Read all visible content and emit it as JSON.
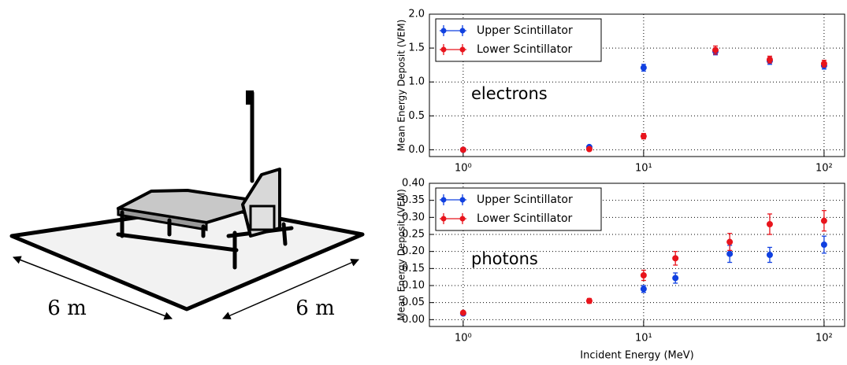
{
  "diagram": {
    "labels": [
      "6 m",
      "6 m"
    ]
  },
  "chart_data": [
    {
      "type": "scatter",
      "ylabel": "Mean Energy Deposit (VEM)",
      "annotation": "electrons",
      "xscale": "log",
      "grid": true,
      "legend": "upper left",
      "xlim": [
        0.65,
        130
      ],
      "ylim": [
        -0.1,
        2.0
      ],
      "xticks": [
        {
          "value": 1,
          "label": "10⁰"
        },
        {
          "value": 10,
          "label": "10¹"
        },
        {
          "value": 100,
          "label": "10²"
        }
      ],
      "yticks": [
        {
          "value": 0,
          "label": "0.0"
        },
        0.5,
        {
          "value": 1,
          "label": "1.0"
        },
        1.5,
        {
          "value": 2,
          "label": "2.0"
        }
      ],
      "series": [
        {
          "name": "Upper Scintillator",
          "color": "#1040e0",
          "x": [
            1,
            5,
            10,
            25,
            50,
            100
          ],
          "values": [
            0.0,
            0.04,
            1.21,
            1.45,
            1.31,
            1.24
          ],
          "errors": [
            0.01,
            0.02,
            0.05,
            0.05,
            0.05,
            0.05
          ]
        },
        {
          "name": "Lower Scintillator",
          "color": "#e8141c",
          "x": [
            1,
            5,
            10,
            25,
            50,
            100
          ],
          "values": [
            0.0,
            0.01,
            0.2,
            1.47,
            1.33,
            1.27
          ],
          "errors": [
            0.01,
            0.01,
            0.04,
            0.06,
            0.05,
            0.05
          ]
        }
      ]
    },
    {
      "type": "scatter",
      "ylabel": "Mean Energy Deposit (VEM)",
      "xlabel": "Incident Energy (MeV)",
      "annotation": "photons",
      "xscale": "log",
      "grid": true,
      "legend": "upper left",
      "xlim": [
        0.65,
        130
      ],
      "ylim": [
        -0.02,
        0.4
      ],
      "xticks": [
        {
          "value": 1,
          "label": "10⁰"
        },
        {
          "value": 10,
          "label": "10¹"
        },
        {
          "value": 100,
          "label": "10²"
        }
      ],
      "yticks": [
        {
          "value": 0,
          "label": "0.00"
        },
        0.05,
        {
          "value": 0.1,
          "label": "0.10"
        },
        0.15,
        {
          "value": 0.2,
          "label": "0.20"
        },
        0.25,
        {
          "value": 0.3,
          "label": "0.30"
        },
        0.35,
        {
          "value": 0.4,
          "label": "0.40"
        }
      ],
      "series": [
        {
          "name": "Upper Scintillator",
          "color": "#1040e0",
          "x": [
            1,
            10,
            15,
            30,
            50,
            100
          ],
          "values": [
            0.018,
            0.09,
            0.122,
            0.193,
            0.19,
            0.22
          ],
          "errors": [
            0.005,
            0.01,
            0.015,
            0.025,
            0.022,
            0.025
          ]
        },
        {
          "name": "Lower Scintillator",
          "color": "#e8141c",
          "x": [
            1,
            5,
            10,
            15,
            30,
            50,
            100
          ],
          "values": [
            0.02,
            0.055,
            0.13,
            0.18,
            0.228,
            0.28,
            0.29
          ],
          "errors": [
            0.005,
            0.007,
            0.015,
            0.02,
            0.025,
            0.03,
            0.03
          ]
        }
      ]
    }
  ]
}
